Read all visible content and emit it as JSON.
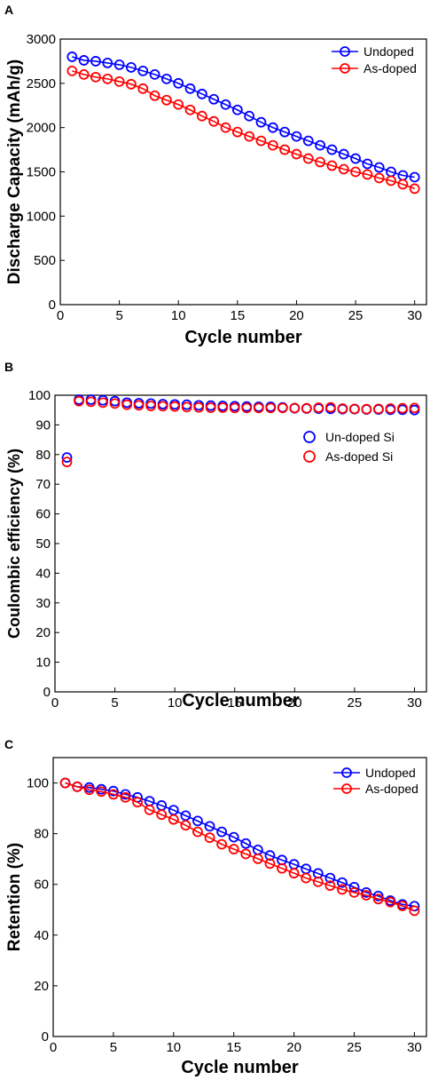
{
  "chart_data": [
    {
      "panel": "A",
      "type": "line",
      "xlabel": "Cycle number",
      "ylabel": "Discharge Capacity (mAh/g)",
      "xlim": [
        0,
        31
      ],
      "ylim": [
        0,
        3000
      ],
      "xticks": [
        0,
        5,
        10,
        15,
        20,
        25,
        30
      ],
      "yticks": [
        0,
        500,
        1000,
        1500,
        2000,
        2500,
        3000
      ],
      "grid": false,
      "legend_position": "top-right",
      "x": [
        1,
        2,
        3,
        4,
        5,
        6,
        7,
        8,
        9,
        10,
        11,
        12,
        13,
        14,
        15,
        16,
        17,
        18,
        19,
        20,
        21,
        22,
        23,
        24,
        25,
        26,
        27,
        28,
        29,
        30
      ],
      "series": [
        {
          "name": "Undoped",
          "color": "#0000ff",
          "marker": "circle",
          "line": true,
          "values": [
            2800,
            2760,
            2750,
            2730,
            2710,
            2680,
            2640,
            2600,
            2550,
            2500,
            2440,
            2380,
            2320,
            2260,
            2200,
            2130,
            2060,
            2000,
            1950,
            1900,
            1850,
            1800,
            1750,
            1700,
            1650,
            1590,
            1550,
            1500,
            1460,
            1440
          ]
        },
        {
          "name": "As-doped",
          "color": "#ff0000",
          "marker": "circle",
          "line": true,
          "values": [
            2640,
            2600,
            2570,
            2550,
            2520,
            2490,
            2440,
            2360,
            2310,
            2260,
            2200,
            2130,
            2070,
            2000,
            1950,
            1900,
            1850,
            1800,
            1750,
            1700,
            1650,
            1610,
            1570,
            1530,
            1500,
            1470,
            1430,
            1400,
            1360,
            1310
          ]
        }
      ]
    },
    {
      "panel": "B",
      "type": "scatter",
      "xlabel": "Cycle number",
      "ylabel": "Coulombic efficiency (%)",
      "xlim": [
        0,
        31
      ],
      "ylim": [
        0,
        100
      ],
      "xticks": [
        0,
        5,
        10,
        15,
        20,
        25,
        30
      ],
      "yticks": [
        0,
        10,
        20,
        30,
        40,
        50,
        60,
        70,
        80,
        90,
        100
      ],
      "grid": false,
      "legend_position": "right",
      "x": [
        1,
        2,
        3,
        4,
        5,
        6,
        7,
        8,
        9,
        10,
        11,
        12,
        13,
        14,
        15,
        16,
        17,
        18,
        19,
        20,
        21,
        22,
        23,
        24,
        25,
        26,
        27,
        28,
        29,
        30
      ],
      "series": [
        {
          "name": "Un-doped Si",
          "color": "#0000ff",
          "marker": "circle",
          "line": false,
          "values": [
            79,
            98.5,
            98.5,
            98.3,
            98,
            97.5,
            97.3,
            97.2,
            97,
            96.9,
            96.8,
            96.6,
            96.5,
            96.4,
            96.3,
            96.2,
            96.1,
            96.1,
            95.9,
            95.6,
            95.5,
            95.5,
            95.4,
            95.3,
            95.3,
            95.2,
            95.2,
            95.1,
            95.1,
            95.0
          ]
        },
        {
          "name": "As-doped Si",
          "color": "#ff0000",
          "marker": "circle",
          "line": false,
          "values": [
            77.5,
            98,
            97.8,
            97.5,
            97.2,
            96.8,
            96.6,
            96.4,
            96.3,
            96.2,
            96,
            95.9,
            95.8,
            95.8,
            95.7,
            95.7,
            95.7,
            95.7,
            95.7,
            95.7,
            95.6,
            95.8,
            95.9,
            95.5,
            95.4,
            95.3,
            95.4,
            95.5,
            95.6,
            95.7
          ]
        }
      ]
    },
    {
      "panel": "C",
      "type": "line",
      "xlabel": "Cycle number",
      "ylabel": "Retention (%)",
      "xlim": [
        0,
        31
      ],
      "ylim": [
        0,
        110
      ],
      "xticks": [
        0,
        5,
        10,
        15,
        20,
        25,
        30
      ],
      "yticks": [
        0,
        20,
        40,
        60,
        80,
        100
      ],
      "grid": false,
      "legend_position": "top-right",
      "x": [
        1,
        2,
        3,
        4,
        5,
        6,
        7,
        8,
        9,
        10,
        11,
        12,
        13,
        14,
        15,
        16,
        17,
        18,
        19,
        20,
        21,
        22,
        23,
        24,
        25,
        26,
        27,
        28,
        29,
        30
      ],
      "series": [
        {
          "name": "Undoped",
          "color": "#0000ff",
          "marker": "circle",
          "line": true,
          "values": [
            100,
            98.5,
            98.2,
            97.5,
            96.8,
            95.5,
            94.3,
            92.8,
            91.1,
            89.3,
            87.1,
            85,
            82.9,
            80.7,
            78.6,
            76.1,
            73.6,
            71.4,
            69.6,
            67.9,
            66.1,
            64.3,
            62.5,
            60.7,
            58.9,
            56.8,
            55.4,
            53.6,
            52.1,
            51.4
          ]
        },
        {
          "name": "As-doped",
          "color": "#ff0000",
          "marker": "circle",
          "line": true,
          "values": [
            100,
            98.5,
            97.3,
            96.6,
            95.5,
            94.3,
            92.4,
            89.4,
            87.5,
            85.6,
            83.3,
            80.7,
            78.4,
            75.8,
            73.9,
            72,
            70.1,
            68.2,
            66.3,
            64.4,
            62.5,
            61,
            59.5,
            58,
            56.8,
            55.7,
            54.2,
            53,
            51.5,
            49.6
          ]
        }
      ]
    }
  ]
}
